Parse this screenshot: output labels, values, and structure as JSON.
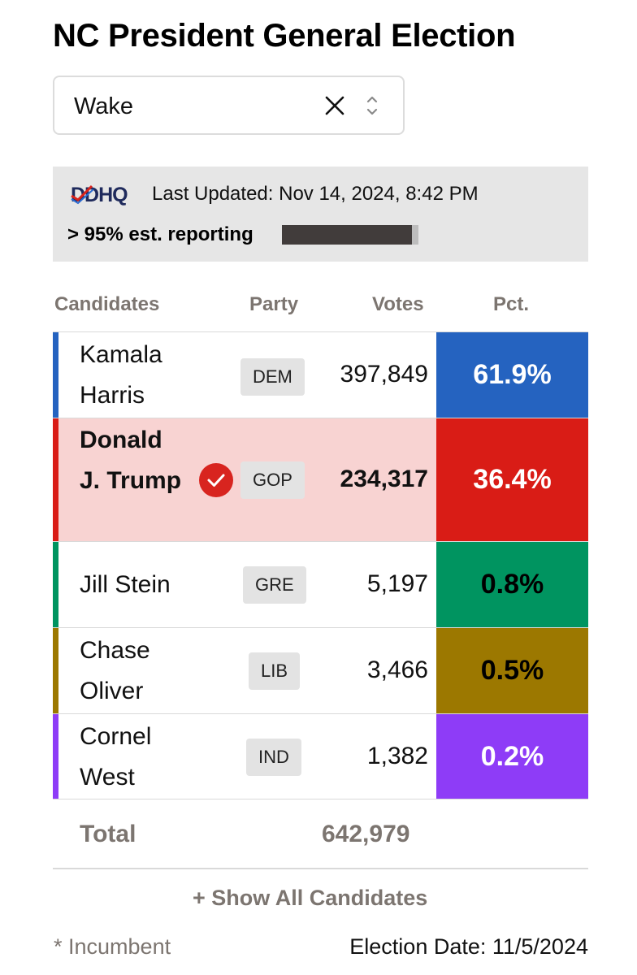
{
  "title": "NC President General Election",
  "county_select": {
    "value": "Wake",
    "clear_icon": "close-icon",
    "toggle_icon": "chevron-updown-icon"
  },
  "status": {
    "logo_text": "DDHQ",
    "last_updated": "Last Updated: Nov 14, 2024, 8:42 PM",
    "reporting": "> 95% est. reporting",
    "reporting_fraction": 0.95
  },
  "columns": {
    "candidates": "Candidates",
    "party": "Party",
    "votes": "Votes",
    "pct": "Pct."
  },
  "candidates": [
    {
      "name": "Kamala Harris",
      "party": "DEM",
      "votes": "397,849",
      "pct": "61.9%",
      "color": "#2563c0",
      "pct_text_color": "#ffffff",
      "winner": false
    },
    {
      "name": "Donald J. Trump",
      "party": "GOP",
      "votes": "234,317",
      "pct": "36.4%",
      "color": "#d91c16",
      "pct_text_color": "#ffffff",
      "winner": true
    },
    {
      "name": "Jill Stein",
      "party": "GRE",
      "votes": "5,197",
      "pct": "0.8%",
      "color": "#009460",
      "pct_text_color": "#000000",
      "winner": false
    },
    {
      "name": "Chase Oliver",
      "party": "LIB",
      "votes": "3,466",
      "pct": "0.5%",
      "color": "#9c7800",
      "pct_text_color": "#000000",
      "winner": false
    },
    {
      "name": "Cornel West",
      "party": "IND",
      "votes": "1,382",
      "pct": "0.2%",
      "color": "#8e3cf7",
      "pct_text_color": "#ffffff",
      "winner": false
    }
  ],
  "total": {
    "label": "Total",
    "votes": "642,979"
  },
  "show_all": "+ Show All Candidates",
  "footer": {
    "incumbent_note": "* Incumbent",
    "election_date": "Election Date: 11/5/2024"
  }
}
